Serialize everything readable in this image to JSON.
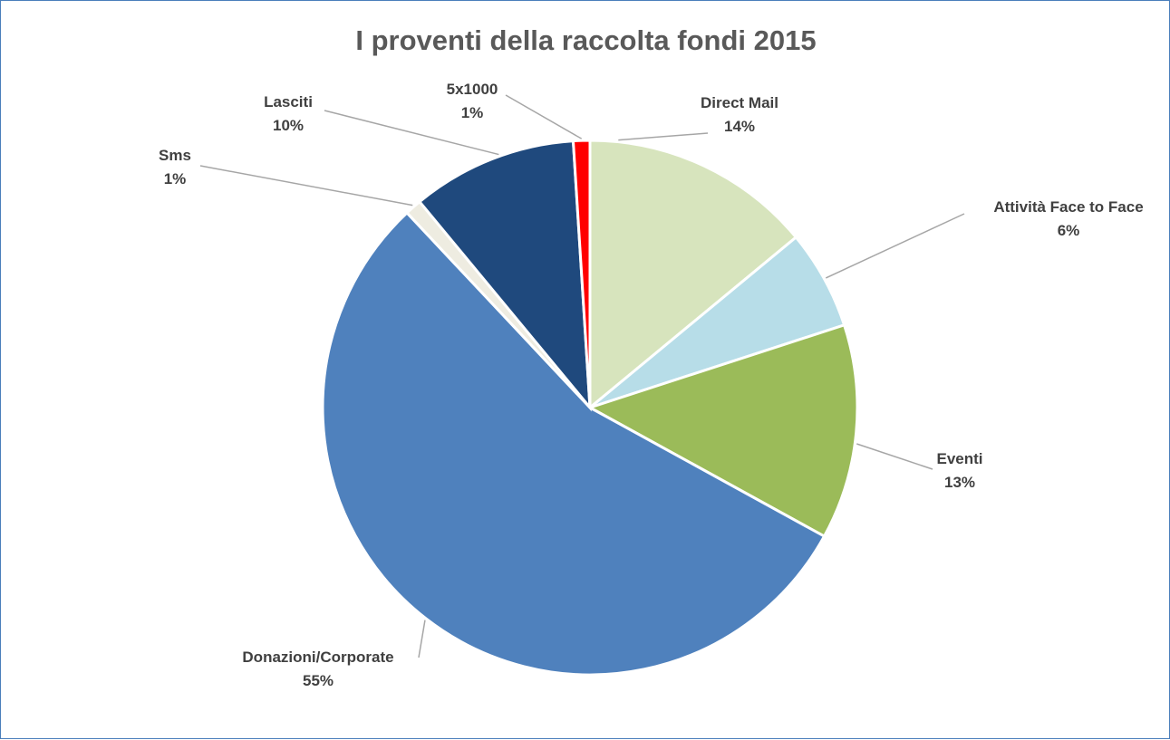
{
  "chart_data": {
    "type": "pie",
    "title": "I proventi della raccolta fondi 2015",
    "start_angle_deg": 0,
    "direction": "clockwise",
    "slices": [
      {
        "name": "Direct Mail",
        "value": 14,
        "label": "14%",
        "color": "#d7e4bd"
      },
      {
        "name": "Attività Face to Face",
        "value": 6,
        "label": "6%",
        "color": "#b7dde8"
      },
      {
        "name": "Eventi",
        "value": 13,
        "label": "13%",
        "color": "#9bbb59"
      },
      {
        "name": "Donazioni/Corporate",
        "value": 55,
        "label": "55%",
        "color": "#4f81bd"
      },
      {
        "name": "Sms",
        "value": 1,
        "label": "1%",
        "color": "#eeece1"
      },
      {
        "name": "Lasciti",
        "value": 10,
        "label": "10%",
        "color": "#1f497d"
      },
      {
        "name": "5x1000",
        "value": 1,
        "label": "1%",
        "color": "#ff0000"
      }
    ],
    "legend": "none",
    "data_labels": "outside with leader lines"
  }
}
